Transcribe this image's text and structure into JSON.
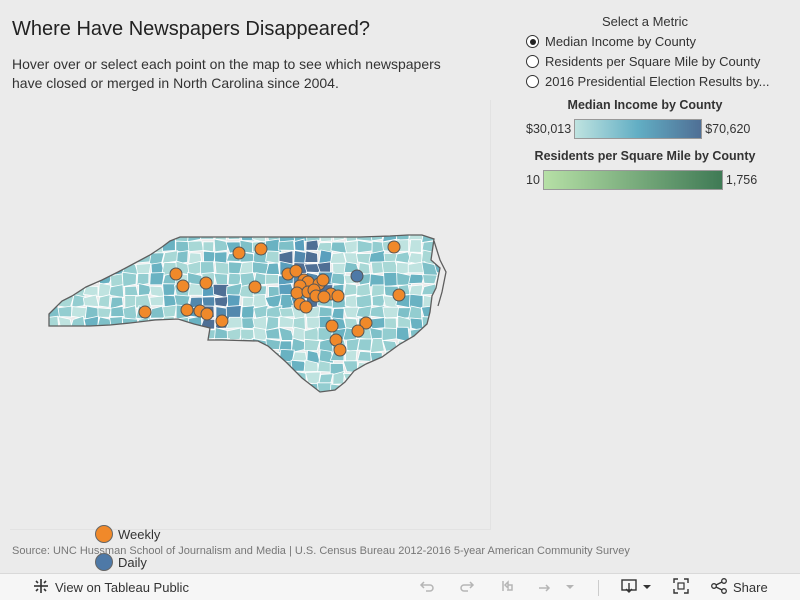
{
  "title": "Where Have Newspapers Disappeared?",
  "subtitle": "Hover over or select each point on the map to see which newspapers have closed or merged in North Carolina since 2004.",
  "metric_selector": {
    "title": "Select a Metric",
    "options": [
      {
        "label": "Median Income by County",
        "selected": true
      },
      {
        "label": "Residents per Square Mile by County",
        "selected": false
      },
      {
        "label": "2016 Presidential Election Results by...",
        "selected": false
      }
    ]
  },
  "income_scale": {
    "title": "Median Income by County",
    "min_label": "$30,013",
    "max_label": "$70,620",
    "color_low": "#bfe3e0",
    "color_high": "#4f6f95"
  },
  "density_scale": {
    "title": "Residents per Square Mile by County",
    "min_label": "10",
    "max_label": "1,756",
    "color_low": "#b6e0a6",
    "color_high": "#3f7a55"
  },
  "point_legend": [
    {
      "label": "Weekly",
      "color": "#f0892a"
    },
    {
      "label": "Daily",
      "color": "#4e79a7"
    }
  ],
  "source": "Source: UNC Hussman School of Journalism and Media  |  U.S. Census Bureau 2012-2016 5-year American Community Survey",
  "toolbar": {
    "view_label": "View on Tableau Public",
    "share_label": "Share"
  }
}
